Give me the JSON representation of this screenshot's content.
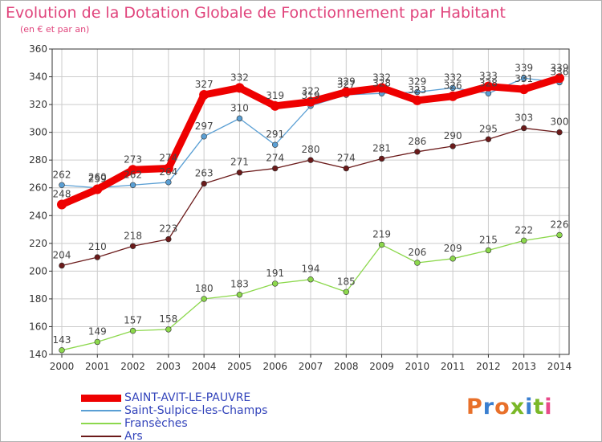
{
  "title": "Evolution de la Dotation Globale de Fonctionnement par Habitant",
  "subtitle": "(en € et par an)",
  "logo": "Proxiti",
  "colors": {
    "title": "#e0447c",
    "legend_text": "#3344bb",
    "grid": "#cccccc",
    "axis": "#333333",
    "label": "#444444"
  },
  "chart_data": {
    "type": "line",
    "title": "Evolution de la Dotation Globale de Fonctionnement par Habitant",
    "subtitle": "(en € et par an)",
    "xlabel": "",
    "ylabel": "",
    "ylim": [
      140,
      360
    ],
    "yticks": [
      140,
      160,
      180,
      200,
      220,
      240,
      260,
      280,
      300,
      320,
      340,
      360
    ],
    "grid": true,
    "legend_position": "bottom-left",
    "categories": [
      "2000",
      "2001",
      "2002",
      "2003",
      "2004",
      "2005",
      "2006",
      "2007",
      "2008",
      "2009",
      "2010",
      "2011",
      "2012",
      "2013",
      "2014"
    ],
    "series": [
      {
        "name": "SAINT-AVIT-LE-PAUVRE",
        "color": "#ee0000",
        "emphasis": true,
        "values": [
          248,
          259,
          273,
          274,
          327,
          332,
          319,
          322,
          329,
          332,
          323,
          326,
          333,
          331,
          339
        ]
      },
      {
        "name": "Saint-Sulpice-les-Champs",
        "color": "#5a9fd4",
        "emphasis": false,
        "values": [
          262,
          260,
          262,
          264,
          297,
          310,
          291,
          319,
          327,
          328,
          329,
          332,
          328,
          339,
          336
        ]
      },
      {
        "name": "Fransèches",
        "color": "#8cd84c",
        "emphasis": false,
        "values": [
          143,
          149,
          157,
          158,
          180,
          183,
          191,
          194,
          185,
          219,
          206,
          209,
          215,
          222,
          226
        ]
      },
      {
        "name": "Ars",
        "color": "#6b1a1a",
        "emphasis": false,
        "values": [
          204,
          210,
          218,
          223,
          263,
          271,
          274,
          280,
          274,
          281,
          286,
          290,
          295,
          303,
          300
        ]
      }
    ]
  }
}
